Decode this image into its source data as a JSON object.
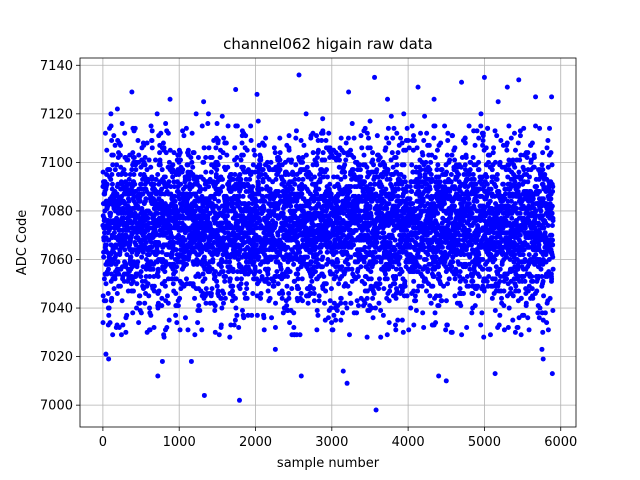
{
  "chart_data": {
    "type": "scatter",
    "title": "channel062 higain raw data",
    "xlabel": "sample number",
    "ylabel": "ADC Code",
    "xlim": [
      -300,
      6200
    ],
    "ylim": [
      6991,
      7143
    ],
    "xticks": [
      0,
      1000,
      2000,
      3000,
      4000,
      5000,
      6000
    ],
    "yticks": [
      7000,
      7020,
      7040,
      7060,
      7080,
      7100,
      7120,
      7140
    ],
    "grid": true,
    "marker_color": "#0000ff",
    "n_samples": 5900,
    "x_range": [
      0,
      5900
    ],
    "core_y_range": [
      7040,
      7110
    ],
    "central_value": 7075,
    "outliers": [
      {
        "x": 40,
        "y": 7021
      },
      {
        "x": 75,
        "y": 7019
      },
      {
        "x": 190,
        "y": 7122
      },
      {
        "x": 380,
        "y": 7129
      },
      {
        "x": 720,
        "y": 7012
      },
      {
        "x": 780,
        "y": 7018
      },
      {
        "x": 880,
        "y": 7126
      },
      {
        "x": 1160,
        "y": 7018
      },
      {
        "x": 1320,
        "y": 7125
      },
      {
        "x": 1330,
        "y": 7004
      },
      {
        "x": 1740,
        "y": 7130
      },
      {
        "x": 1790,
        "y": 7002
      },
      {
        "x": 2020,
        "y": 7128
      },
      {
        "x": 2260,
        "y": 7023
      },
      {
        "x": 2570,
        "y": 7136
      },
      {
        "x": 2600,
        "y": 7012
      },
      {
        "x": 3150,
        "y": 7014
      },
      {
        "x": 3200,
        "y": 7009
      },
      {
        "x": 3220,
        "y": 7129
      },
      {
        "x": 3560,
        "y": 7135
      },
      {
        "x": 3580,
        "y": 6998
      },
      {
        "x": 3730,
        "y": 7126
      },
      {
        "x": 4130,
        "y": 7131
      },
      {
        "x": 4340,
        "y": 7126
      },
      {
        "x": 4400,
        "y": 7012
      },
      {
        "x": 4500,
        "y": 7010
      },
      {
        "x": 4700,
        "y": 7133
      },
      {
        "x": 5000,
        "y": 7135
      },
      {
        "x": 5140,
        "y": 7013
      },
      {
        "x": 5180,
        "y": 7125
      },
      {
        "x": 5300,
        "y": 7131
      },
      {
        "x": 5450,
        "y": 7134
      },
      {
        "x": 5670,
        "y": 7127
      },
      {
        "x": 5770,
        "y": 7019
      },
      {
        "x": 5880,
        "y": 7127
      },
      {
        "x": 5890,
        "y": 7013
      }
    ]
  }
}
